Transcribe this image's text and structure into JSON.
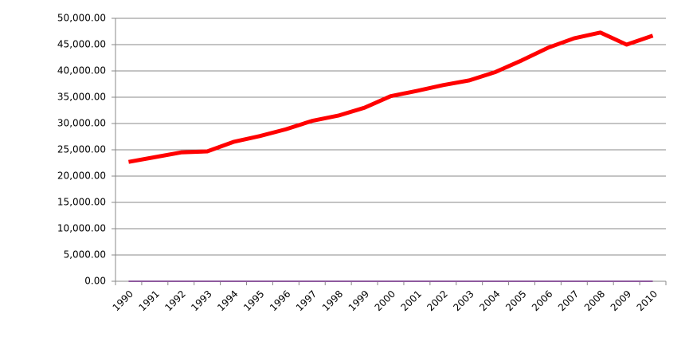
{
  "chart_data": {
    "type": "line",
    "categories": [
      "1990",
      "1991",
      "1992",
      "1993",
      "1994",
      "1995",
      "1996",
      "1997",
      "1998",
      "1999",
      "2000",
      "2001",
      "2002",
      "2003",
      "2004",
      "2005",
      "2006",
      "2007",
      "2008",
      "2009",
      "2010"
    ],
    "series": [
      {
        "color": "#ff0000",
        "values": [
          22700,
          23600,
          24500,
          24700,
          26500,
          27600,
          28900,
          30500,
          31500,
          33000,
          35200,
          36200,
          37300,
          38200,
          39800,
          42000,
          44400,
          46200,
          47300,
          45000,
          46700
        ]
      },
      {
        "color": "#8e5a9e",
        "values": [
          0,
          0,
          0,
          0,
          0,
          0,
          0,
          0,
          0,
          0,
          0,
          0,
          0,
          0,
          0,
          0,
          0,
          0,
          0,
          0,
          0
        ]
      }
    ],
    "ylim": [
      0,
      50000
    ],
    "yticks": [
      {
        "value": 0,
        "label": "0.00"
      },
      {
        "value": 5000,
        "label": "5,000.00"
      },
      {
        "value": 10000,
        "label": "10,000.00"
      },
      {
        "value": 15000,
        "label": "15,000.00"
      },
      {
        "value": 20000,
        "label": "20,000.00"
      },
      {
        "value": 25000,
        "label": "25,000.00"
      },
      {
        "value": 30000,
        "label": "30,000.00"
      },
      {
        "value": 35000,
        "label": "35,000.00"
      },
      {
        "value": 40000,
        "label": "40,000.00"
      },
      {
        "value": 45000,
        "label": "45,000.00"
      },
      {
        "value": 50000,
        "label": "50,000.00"
      }
    ],
    "grid": true
  }
}
